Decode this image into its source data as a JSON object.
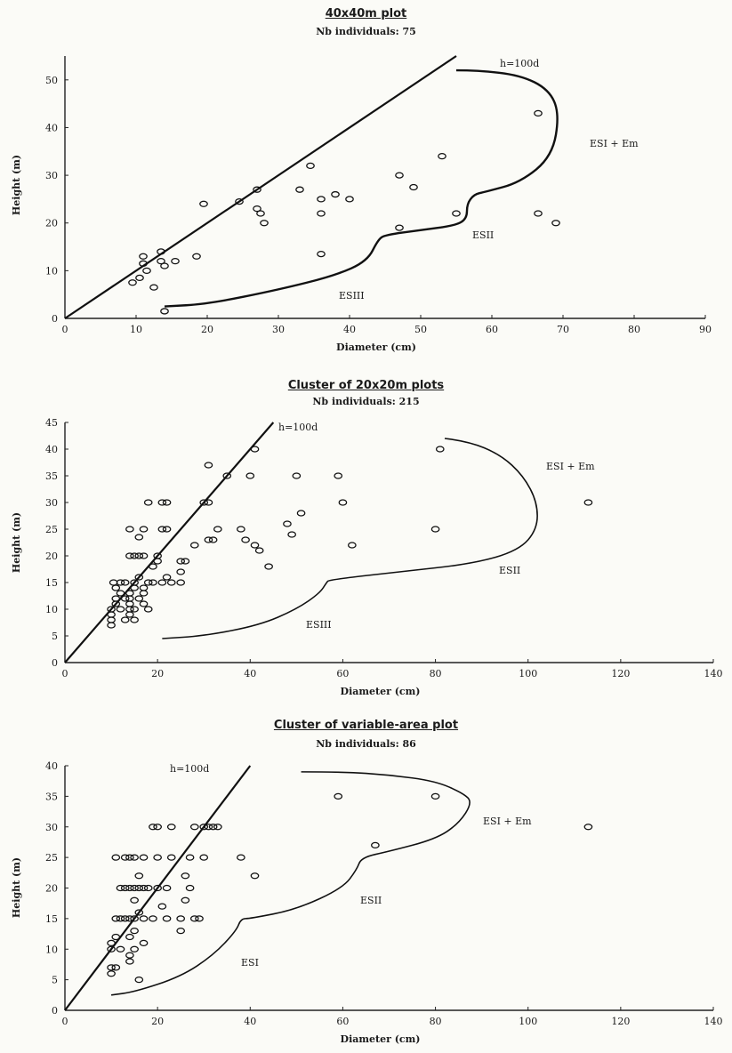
{
  "chart_data": [
    {
      "type": "scatter",
      "title": "40x40m plot",
      "subtitle": "Nb individuals: 75",
      "xlabel": "Diameter (cm)",
      "ylabel": "Height (m)",
      "xlim": [
        0,
        90
      ],
      "ylim": [
        0,
        55
      ],
      "xticks": [
        "0",
        "10",
        "20",
        "30",
        "40",
        "50",
        "60",
        "70",
        "80",
        "90"
      ],
      "yticks": [
        "0",
        "10",
        "20",
        "30",
        "40",
        "50"
      ],
      "grid": false,
      "line_label": "h=100d",
      "regions": [
        {
          "label": "ESI + Em"
        },
        {
          "label": "ESII"
        },
        {
          "label": "ESIII"
        }
      ],
      "points": [
        [
          9.5,
          7.5
        ],
        [
          10.5,
          8.5
        ],
        [
          11,
          11.5
        ],
        [
          11,
          13
        ],
        [
          11.5,
          10
        ],
        [
          12.5,
          6.5
        ],
        [
          13.5,
          14
        ],
        [
          13.5,
          12
        ],
        [
          14,
          11
        ],
        [
          14,
          1.5
        ],
        [
          15.5,
          12
        ],
        [
          18.5,
          13
        ],
        [
          19.5,
          24
        ],
        [
          24.5,
          24.5
        ],
        [
          27,
          27
        ],
        [
          27,
          23
        ],
        [
          27.5,
          22
        ],
        [
          28,
          20
        ],
        [
          33,
          27
        ],
        [
          34.5,
          32
        ],
        [
          36,
          25
        ],
        [
          36,
          22
        ],
        [
          36,
          13.5
        ],
        [
          38,
          26
        ],
        [
          40,
          25
        ],
        [
          47,
          30
        ],
        [
          47,
          19
        ],
        [
          49,
          27.5
        ],
        [
          53,
          34
        ],
        [
          55,
          22
        ],
        [
          66.5,
          43
        ],
        [
          66.5,
          22
        ],
        [
          69,
          20
        ]
      ]
    },
    {
      "type": "scatter",
      "title": "Cluster of 20x20m plots",
      "subtitle": "Nb individuals: 215",
      "xlabel": "Diameter (cm)",
      "ylabel": "Height (m)",
      "xlim": [
        0,
        140
      ],
      "ylim": [
        0,
        45
      ],
      "xticks": [
        "0",
        "20",
        "40",
        "60",
        "80",
        "100",
        "120",
        "140"
      ],
      "yticks": [
        "0",
        "5",
        "10",
        "15",
        "20",
        "25",
        "30",
        "35",
        "40",
        "45"
      ],
      "grid": false,
      "line_label": "h=100d",
      "regions": [
        {
          "label": "ESI + Em"
        },
        {
          "label": "ESII"
        },
        {
          "label": "ESIII"
        }
      ],
      "points": [
        [
          10,
          7
        ],
        [
          10,
          8
        ],
        [
          10,
          9
        ],
        [
          10,
          10
        ],
        [
          11,
          11
        ],
        [
          11,
          12
        ],
        [
          10.5,
          15
        ],
        [
          11,
          14
        ],
        [
          12,
          15
        ],
        [
          12,
          13
        ],
        [
          12,
          10
        ],
        [
          13,
          15
        ],
        [
          13,
          12
        ],
        [
          13,
          8
        ],
        [
          14,
          11
        ],
        [
          14,
          10
        ],
        [
          14,
          9
        ],
        [
          15,
          8
        ],
        [
          15,
          15
        ],
        [
          14,
          13
        ],
        [
          14,
          12
        ],
        [
          15,
          14
        ],
        [
          15,
          10
        ],
        [
          16,
          12
        ],
        [
          17,
          11
        ],
        [
          18,
          10
        ],
        [
          18,
          15
        ],
        [
          16,
          16
        ],
        [
          17,
          14
        ],
        [
          17,
          13
        ],
        [
          14,
          25
        ],
        [
          14,
          20
        ],
        [
          15,
          20
        ],
        [
          16,
          20
        ],
        [
          17,
          20
        ],
        [
          16,
          23.5
        ],
        [
          17,
          25
        ],
        [
          18,
          30
        ],
        [
          19,
          15
        ],
        [
          19,
          18
        ],
        [
          20,
          20
        ],
        [
          20,
          19
        ],
        [
          21,
          15
        ],
        [
          21,
          25
        ],
        [
          21,
          30
        ],
        [
          22,
          16
        ],
        [
          23,
          15
        ],
        [
          22,
          25
        ],
        [
          22,
          30
        ],
        [
          25,
          15
        ],
        [
          25,
          17
        ],
        [
          25,
          19
        ],
        [
          26,
          19
        ],
        [
          28,
          22
        ],
        [
          30,
          30
        ],
        [
          31,
          23
        ],
        [
          31,
          30
        ],
        [
          31,
          37
        ],
        [
          32,
          23
        ],
        [
          33,
          25
        ],
        [
          35,
          35
        ],
        [
          38,
          25
        ],
        [
          39,
          23
        ],
        [
          40,
          35
        ],
        [
          41,
          40
        ],
        [
          41,
          22
        ],
        [
          42,
          21
        ],
        [
          44,
          18
        ],
        [
          48,
          26
        ],
        [
          49,
          24
        ],
        [
          50,
          35
        ],
        [
          51,
          28
        ],
        [
          59,
          35
        ],
        [
          60,
          30
        ],
        [
          62,
          22
        ],
        [
          80,
          25
        ],
        [
          81,
          40
        ],
        [
          113,
          30
        ]
      ]
    },
    {
      "type": "scatter",
      "title": "Cluster of variable-area plot",
      "subtitle": "Nb individuals: 86",
      "xlabel": "Diameter (cm)",
      "ylabel": "Height (m)",
      "xlim": [
        0,
        140
      ],
      "ylim": [
        0,
        40
      ],
      "xticks": [
        "0",
        "20",
        "40",
        "60",
        "80",
        "100",
        "120",
        "140"
      ],
      "yticks": [
        "0",
        "5",
        "10",
        "15",
        "20",
        "25",
        "30",
        "35",
        "40"
      ],
      "grid": false,
      "line_label": "h=100d",
      "regions": [
        {
          "label": "ESI + Em"
        },
        {
          "label": "ESII"
        },
        {
          "label": "ESI"
        }
      ],
      "points": [
        [
          10,
          6
        ],
        [
          10,
          7
        ],
        [
          10,
          10
        ],
        [
          10,
          11
        ],
        [
          11,
          12
        ],
        [
          11,
          7
        ],
        [
          11,
          15
        ],
        [
          11,
          25
        ],
        [
          12,
          10
        ],
        [
          12,
          15
        ],
        [
          12,
          20
        ],
        [
          13,
          15
        ],
        [
          13,
          20
        ],
        [
          13,
          25
        ],
        [
          14,
          8
        ],
        [
          14,
          9
        ],
        [
          14,
          12
        ],
        [
          14,
          15
        ],
        [
          14,
          20
        ],
        [
          14,
          25
        ],
        [
          15,
          10
        ],
        [
          15,
          13
        ],
        [
          15,
          15
        ],
        [
          15,
          18
        ],
        [
          15,
          20
        ],
        [
          15,
          25
        ],
        [
          16,
          5
        ],
        [
          16,
          16
        ],
        [
          16,
          20
        ],
        [
          16,
          22
        ],
        [
          17,
          11
        ],
        [
          17,
          15
        ],
        [
          17,
          20
        ],
        [
          17,
          25
        ],
        [
          18,
          20
        ],
        [
          19,
          30
        ],
        [
          19,
          15
        ],
        [
          20,
          20
        ],
        [
          20,
          25
        ],
        [
          20,
          30
        ],
        [
          21,
          17
        ],
        [
          22,
          15
        ],
        [
          22,
          20
        ],
        [
          23,
          25
        ],
        [
          23,
          30
        ],
        [
          25,
          13
        ],
        [
          25,
          15
        ],
        [
          26,
          18
        ],
        [
          26,
          22
        ],
        [
          27,
          20
        ],
        [
          27,
          25
        ],
        [
          28,
          15
        ],
        [
          28,
          30
        ],
        [
          29,
          15
        ],
        [
          30,
          25
        ],
        [
          30,
          30
        ],
        [
          31,
          30
        ],
        [
          32,
          30
        ],
        [
          33,
          30
        ],
        [
          38,
          25
        ],
        [
          41,
          22
        ],
        [
          59,
          35
        ],
        [
          67,
          27
        ],
        [
          80,
          35
        ],
        [
          113,
          30
        ]
      ]
    }
  ]
}
